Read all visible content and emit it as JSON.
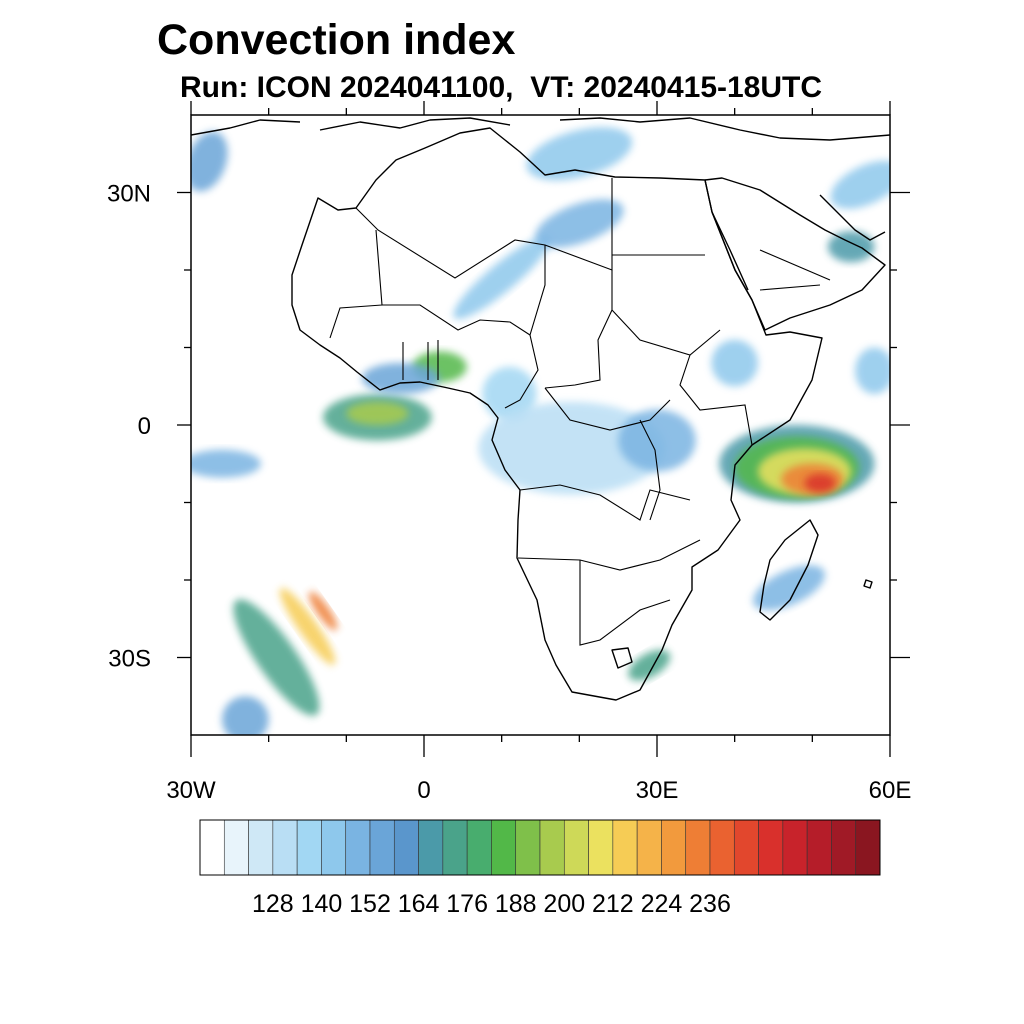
{
  "title": "Convection index",
  "subtitle": {
    "run": "Run: ICON 2024041100,",
    "vt": "VT: 20240415-18UTC"
  },
  "map": {
    "lon_range": [
      -30,
      60
    ],
    "lat_range": [
      -40,
      40
    ],
    "lat_labels": [
      {
        "lat": 30,
        "text": "30N"
      },
      {
        "lat": 0,
        "text": "0"
      },
      {
        "lat": -30,
        "text": "30S"
      }
    ],
    "lon_labels": [
      {
        "lon": -30,
        "text": "30W"
      },
      {
        "lon": 0,
        "text": "0"
      },
      {
        "lon": 30,
        "text": "30E"
      },
      {
        "lon": 60,
        "text": "60E"
      }
    ],
    "minor_lon_ticks": [
      -20,
      -10,
      10,
      20,
      40,
      50
    ],
    "minor_lat_ticks": [
      -20,
      -10,
      10,
      20
    ]
  },
  "colorbar": {
    "colors": [
      "#ffffff",
      "#e8f4fb",
      "#cfe8f6",
      "#b9def4",
      "#a2d7f3",
      "#8ec8ec",
      "#7ab4e2",
      "#6aa5d8",
      "#5a96cc",
      "#4b9aa9",
      "#4aa38a",
      "#48ad6e",
      "#52b848",
      "#7fc04a",
      "#a8cb4e",
      "#ced958",
      "#ebe15f",
      "#f6cc55",
      "#f5b349",
      "#f29a3d",
      "#ee7e35",
      "#ea6230",
      "#e2472d",
      "#d9302c",
      "#c8232b",
      "#b51d29",
      "#a01a26",
      "#8a1620"
    ],
    "labels": [
      "128",
      "140",
      "152",
      "164",
      "176",
      "188",
      "200",
      "212",
      "224",
      "236"
    ]
  },
  "field_blobs": [
    {
      "lon": -19,
      "lat": -30,
      "rx": 2.5,
      "ry": 9,
      "rot": -35,
      "level": 10
    },
    {
      "lon": -15,
      "lat": -26,
      "rx": 1.2,
      "ry": 6,
      "rot": -35,
      "level": 17
    },
    {
      "lon": -13,
      "lat": -24,
      "rx": 0.8,
      "ry": 3,
      "rot": -35,
      "level": 20
    },
    {
      "lon": -23,
      "lat": -38,
      "rx": 3,
      "ry": 3,
      "rot": 0,
      "level": 7
    },
    {
      "lon": -6,
      "lat": 1,
      "rx": 7,
      "ry": 3,
      "rot": 0,
      "level": 10
    },
    {
      "lon": -6,
      "lat": 1.5,
      "rx": 4,
      "ry": 1.5,
      "rot": 0,
      "level": 14
    },
    {
      "lon": -26,
      "lat": -5,
      "rx": 5,
      "ry": 1.8,
      "rot": 0,
      "level": 6
    },
    {
      "lon": 2,
      "lat": 7.5,
      "rx": 3.5,
      "ry": 2,
      "rot": 0,
      "level": 12
    },
    {
      "lon": -3,
      "lat": 6,
      "rx": 5,
      "ry": 2,
      "rot": 0,
      "level": 7
    },
    {
      "lon": 11,
      "lat": 4,
      "rx": 3.5,
      "ry": 3.5,
      "rot": 0,
      "level": 4
    },
    {
      "lon": 19,
      "lat": -3,
      "rx": 12,
      "ry": 6,
      "rot": 0,
      "level": 3
    },
    {
      "lon": 30,
      "lat": -2,
      "rx": 5,
      "ry": 4,
      "rot": 0,
      "level": 6
    },
    {
      "lon": 48,
      "lat": -5,
      "rx": 10,
      "ry": 5,
      "rot": 0,
      "level": 9
    },
    {
      "lon": 48,
      "lat": -5.5,
      "rx": 8,
      "ry": 4,
      "rot": 0,
      "level": 12
    },
    {
      "lon": 49,
      "lat": -6,
      "rx": 6,
      "ry": 3,
      "rot": 0,
      "level": 16
    },
    {
      "lon": 50,
      "lat": -7,
      "rx": 4,
      "ry": 2,
      "rot": 0,
      "level": 20
    },
    {
      "lon": 51,
      "lat": -7.5,
      "rx": 2,
      "ry": 1.2,
      "rot": 0,
      "level": 23
    },
    {
      "lon": 47,
      "lat": -21,
      "rx": 5,
      "ry": 2.2,
      "rot": -25,
      "level": 6
    },
    {
      "lon": 10,
      "lat": 19,
      "rx": 8,
      "ry": 1.8,
      "rot": -40,
      "level": 5
    },
    {
      "lon": 20,
      "lat": 26,
      "rx": 6,
      "ry": 2.5,
      "rot": -20,
      "level": 6
    },
    {
      "lon": 20,
      "lat": 35,
      "rx": 7,
      "ry": 3,
      "rot": -15,
      "level": 5
    },
    {
      "lon": 57,
      "lat": 31,
      "rx": 5,
      "ry": 2.5,
      "rot": -25,
      "level": 5
    },
    {
      "lon": 55,
      "lat": 23,
      "rx": 3,
      "ry": 2,
      "rot": 0,
      "level": 9
    },
    {
      "lon": 40,
      "lat": 8,
      "rx": 3,
      "ry": 3,
      "rot": 0,
      "level": 5
    },
    {
      "lon": 29,
      "lat": -31,
      "rx": 3,
      "ry": 1.5,
      "rot": -30,
      "level": 10
    },
    {
      "lon": -28,
      "lat": 34,
      "rx": 2.5,
      "ry": 4,
      "rot": 20,
      "level": 7
    },
    {
      "lon": 58,
      "lat": 7,
      "rx": 2.5,
      "ry": 3,
      "rot": 0,
      "level": 5
    }
  ]
}
